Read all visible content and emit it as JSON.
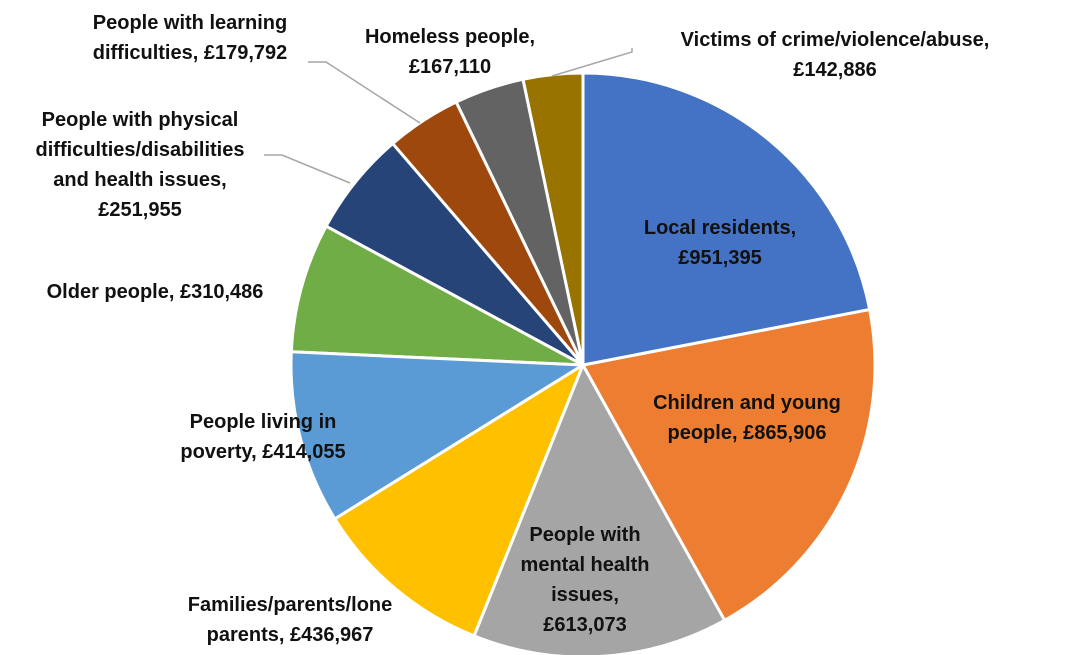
{
  "chart_data": {
    "type": "pie",
    "values": [
      951395,
      865906,
      613073,
      436967,
      414055,
      310486,
      251955,
      179792,
      167110,
      142886
    ],
    "value_labels": [
      "Local residents,\n£951,395",
      "Children and young\npeople, £865,906",
      "People with\nmental health\nissues,\n£613,073",
      "Families/parents/lone\nparents, £436,967",
      "People living in\npoverty, £414,055",
      "Older people, £310,486",
      "People with physical\ndifficulties/disabilities\nand health issues,\n£251,955",
      "People with learning\ndifficulties, £179,792",
      "Homeless people,\n£167,110",
      "Victims of crime/violence/abuse,\n£142,886"
    ],
    "colors": [
      "#4472c4",
      "#ed7d31",
      "#a5a5a5",
      "#ffc000",
      "#5b9bd5",
      "#70ad47",
      "#264478",
      "#9e480e",
      "#636363",
      "#997300"
    ]
  }
}
